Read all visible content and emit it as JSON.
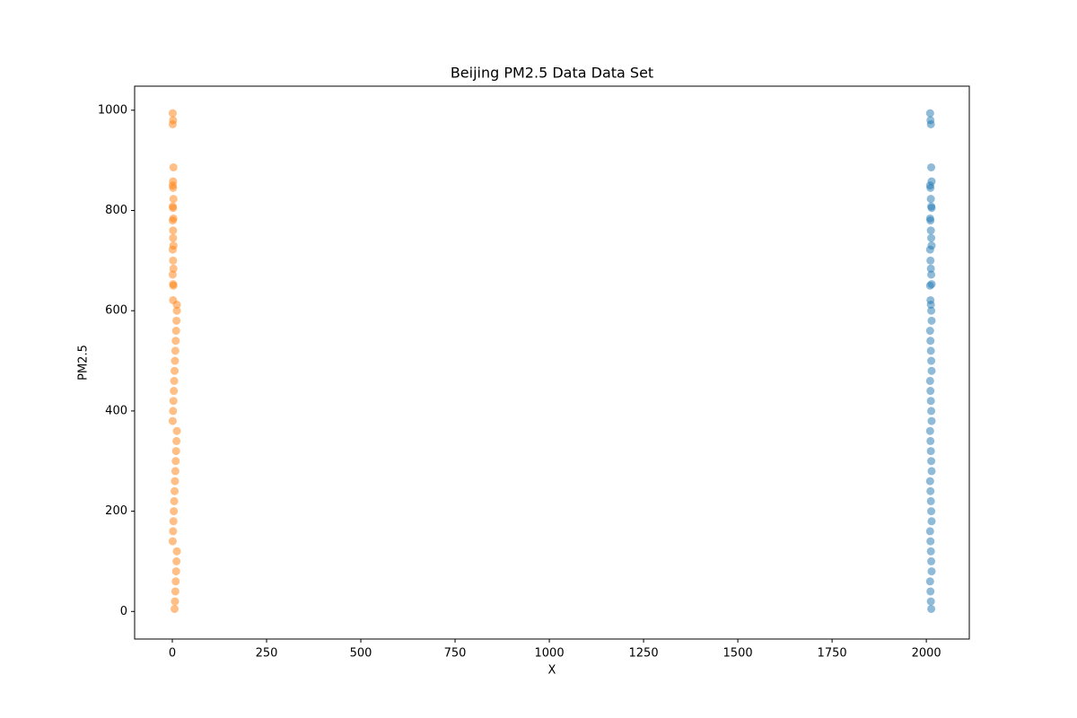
{
  "chart_data": {
    "type": "scatter",
    "title": "Beijing PM2.5 Data Data Set",
    "x_label": "X",
    "y_label": "PM2.5",
    "xlim": [
      -100,
      2114
    ],
    "ylim": [
      -55,
      1048
    ],
    "xticks": [
      0,
      250,
      500,
      750,
      1000,
      1250,
      1500,
      1750,
      2000
    ],
    "yticks": [
      0,
      200,
      400,
      600,
      800,
      1000
    ],
    "grid": false,
    "series": [
      {
        "color": "#1f77b4",
        "x": [
          2010,
          2011,
          2012,
          2013,
          2014,
          2010,
          2011,
          2012,
          2013,
          2014,
          2010,
          2011,
          2012,
          2013,
          2014,
          2010,
          2011,
          2012,
          2013,
          2014,
          2010,
          2011,
          2012,
          2013,
          2014,
          2010,
          2011,
          2012,
          2013,
          2014,
          2010,
          2011,
          2012,
          2013,
          2014,
          2010,
          2011,
          2012,
          2013,
          2014,
          2010,
          2011,
          2012,
          2013,
          2014,
          2010,
          2011,
          2012,
          2013,
          2014,
          2010,
          2011,
          2012,
          2013
        ],
        "values": [
          994,
          980,
          972,
          886,
          858,
          850,
          845,
          823,
          808,
          805,
          784,
          780,
          760,
          745,
          730,
          722,
          700,
          684,
          672,
          653,
          650,
          621,
          612,
          600,
          580,
          560,
          540,
          520,
          500,
          480,
          460,
          440,
          420,
          400,
          380,
          360,
          340,
          320,
          300,
          280,
          260,
          240,
          220,
          200,
          180,
          160,
          140,
          120,
          100,
          80,
          60,
          40,
          20,
          5
        ]
      },
      {
        "color": "#ff7f0e",
        "x": [
          1,
          2,
          1,
          3,
          2,
          1,
          2,
          3,
          1,
          2,
          3,
          1,
          2,
          2,
          3,
          1,
          2,
          3,
          1,
          2,
          3,
          2,
          12,
          12,
          11,
          10,
          9,
          8,
          7,
          6,
          5,
          4,
          3,
          2,
          1,
          12,
          11,
          10,
          9,
          8,
          7,
          6,
          5,
          4,
          3,
          2,
          1,
          12,
          11,
          10,
          9,
          8,
          7,
          6
        ],
        "values": [
          994,
          980,
          972,
          886,
          858,
          850,
          845,
          823,
          808,
          805,
          784,
          780,
          760,
          745,
          730,
          722,
          700,
          684,
          672,
          653,
          650,
          621,
          612,
          600,
          580,
          560,
          540,
          520,
          500,
          480,
          460,
          440,
          420,
          400,
          380,
          360,
          340,
          320,
          300,
          280,
          260,
          240,
          220,
          200,
          180,
          160,
          140,
          120,
          100,
          80,
          60,
          40,
          20,
          5
        ]
      }
    ]
  }
}
